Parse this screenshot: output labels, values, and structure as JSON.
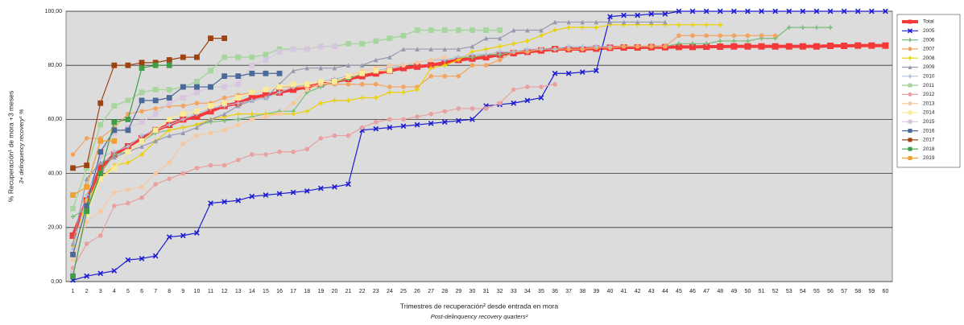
{
  "chart_data": {
    "type": "line",
    "y_title": "% Recuperación¹ de mora +3 meses",
    "y_subtitle": "3+ delinquency recovery¹ %",
    "x_title": "Trimestres de recuperación² desde entrada en mora",
    "x_subtitle": "Post-delinquency recovery quarters²",
    "categories": [
      "1",
      "2",
      "3",
      "4",
      "5",
      "6",
      "7",
      "8",
      "9",
      "10",
      "11",
      "12",
      "13",
      "14",
      "15",
      "16",
      "17",
      "18",
      "19",
      "20",
      "21",
      "22",
      "23",
      "24",
      "25",
      "26",
      "27",
      "28",
      "29",
      "30",
      "31",
      "32",
      "33",
      "34",
      "35",
      "36",
      "37",
      "38",
      "39",
      "40",
      "41",
      "42",
      "43",
      "44",
      "45",
      "46",
      "47",
      "48",
      "49",
      "50",
      "51",
      "52",
      "53",
      "54",
      "55",
      "56",
      "57",
      "58",
      "59",
      "60"
    ],
    "ylim": [
      0,
      100
    ],
    "yticks": [
      {
        "value": 0,
        "label": "0,00"
      },
      {
        "value": 20,
        "label": "20,00"
      },
      {
        "value": 40,
        "label": "40,00"
      },
      {
        "value": 60,
        "label": "60,00"
      },
      {
        "value": 80,
        "label": "80,00"
      },
      {
        "value": 100,
        "label": "100,00"
      }
    ],
    "grid": true,
    "legend": "right",
    "series": [
      {
        "name": "Total",
        "color": "#f23a3a",
        "marker": "square",
        "width": 4,
        "values": [
          17,
          30,
          42,
          47,
          50,
          53,
          56,
          58,
          60,
          61,
          63,
          65,
          66,
          68,
          69,
          70,
          71,
          72,
          73,
          74,
          75,
          76,
          77,
          78,
          79,
          79.5,
          80,
          81,
          82,
          82.5,
          83,
          84,
          84.5,
          85,
          85.5,
          86,
          86,
          86,
          86.2,
          86.5,
          86.6,
          86.6,
          86.7,
          86.7,
          86.8,
          86.8,
          86.9,
          86.9,
          87,
          87,
          87,
          87,
          87,
          87,
          87,
          87.2,
          87.2,
          87.3,
          87.3,
          87.3
        ]
      },
      {
        "name": "2005",
        "color": "#1c1cd0",
        "marker": "x",
        "width": 1.2,
        "values": [
          0.5,
          2,
          3,
          4,
          8,
          8.5,
          9.5,
          16.5,
          17,
          18,
          29,
          29.5,
          30,
          31.5,
          32,
          32.5,
          33,
          33.5,
          34.5,
          35,
          36,
          56,
          56.5,
          57,
          57.5,
          58,
          58.5,
          59,
          59.5,
          60,
          65,
          65.5,
          66,
          67,
          68,
          77,
          77,
          77.5,
          78,
          98,
          98.5,
          98.5,
          99,
          99,
          100,
          100,
          100,
          100,
          100,
          100,
          100,
          100,
          100,
          100,
          100,
          100,
          100,
          100,
          100,
          100
        ]
      },
      {
        "name": "2006",
        "color": "#7dbd7d",
        "marker": "plus",
        "width": 1.2,
        "values": [
          24,
          27,
          40,
          47,
          48,
          52,
          55,
          56,
          57,
          58,
          59,
          59.5,
          60,
          61,
          62,
          63,
          63,
          70,
          72,
          74,
          75,
          77,
          78,
          79,
          80,
          81,
          82,
          82,
          83,
          83,
          84,
          84,
          85,
          85,
          86,
          86,
          86,
          86,
          86.5,
          86.5,
          87,
          87,
          87,
          87,
          88,
          88,
          88,
          89,
          89,
          89,
          90,
          90,
          94,
          94,
          94,
          94,
          null,
          null,
          null,
          null
        ]
      },
      {
        "name": "2007",
        "color": "#f2a460",
        "marker": "circle",
        "width": 1.2,
        "values": [
          47,
          53,
          53,
          57,
          62,
          63,
          64,
          65,
          65,
          66,
          66,
          68,
          69,
          70,
          71,
          72,
          72,
          72,
          73,
          73,
          73,
          73,
          73,
          72,
          72,
          72,
          76,
          76,
          76,
          80,
          80,
          82,
          85,
          85,
          86,
          86,
          86,
          86,
          86.5,
          86.5,
          87,
          87,
          87,
          87,
          91,
          91,
          91,
          91,
          91,
          91,
          91,
          91,
          null,
          null,
          null,
          null,
          null,
          null,
          null,
          null
        ]
      },
      {
        "name": "2008",
        "color": "#ecd000",
        "marker": "plus",
        "width": 1.2,
        "values": [
          13,
          30,
          38,
          43,
          44,
          47,
          52,
          56,
          57,
          58,
          60,
          61,
          62,
          62,
          62,
          62,
          62,
          63,
          66,
          67,
          67,
          68,
          68,
          70,
          70,
          71,
          79,
          80,
          82,
          85,
          86,
          87,
          88,
          89,
          91,
          93,
          94,
          94,
          94,
          95,
          95,
          95,
          95,
          95,
          95,
          95,
          95,
          95,
          null,
          null,
          null,
          null,
          null,
          null,
          null,
          null,
          null,
          null,
          null,
          null
        ]
      },
      {
        "name": "2009",
        "color": "#9898ae",
        "marker": "triangle",
        "width": 1.2,
        "values": [
          14,
          38,
          44,
          46,
          48,
          50,
          52,
          54,
          55,
          57,
          60,
          62,
          65,
          67,
          68,
          73,
          78,
          79,
          79,
          79,
          80,
          80,
          82,
          83,
          86,
          86,
          86,
          86,
          86,
          87,
          90,
          90,
          93,
          93,
          93,
          96,
          96,
          96,
          96,
          96,
          96,
          96,
          96,
          96,
          null,
          null,
          null,
          null,
          null,
          null,
          null,
          null,
          null,
          null,
          null,
          null,
          null,
          null,
          null,
          null
        ]
      },
      {
        "name": "2010",
        "color": "#aac0dc",
        "marker": "plus",
        "width": 1,
        "values": [
          12,
          32,
          46,
          48,
          50,
          54,
          56,
          58,
          60,
          62,
          64,
          65,
          66,
          67,
          68,
          70,
          72,
          73,
          74,
          75,
          76,
          77,
          78,
          79,
          80,
          81,
          82,
          82,
          83,
          84,
          84,
          85,
          85,
          86,
          86,
          86,
          87,
          87,
          87,
          87,
          null,
          null,
          null,
          null,
          null,
          null,
          null,
          null,
          null,
          null,
          null,
          null,
          null,
          null,
          null,
          null,
          null,
          null,
          null,
          null
        ]
      },
      {
        "name": "2011",
        "color": "#a6d69e",
        "marker": "square",
        "width": 1.5,
        "values": [
          27,
          42,
          58,
          65,
          67,
          70,
          71,
          71,
          72,
          74,
          78,
          83,
          83,
          83,
          84,
          86,
          86,
          86,
          87,
          87,
          88,
          88,
          89,
          90,
          91,
          93,
          93,
          93,
          93,
          93,
          93,
          93,
          null,
          null,
          null,
          null,
          null,
          null,
          null,
          null,
          null,
          null,
          null,
          null,
          null,
          null,
          null,
          null,
          null,
          null,
          null,
          null,
          null,
          null,
          null,
          null,
          null,
          null,
          null,
          null
        ]
      },
      {
        "name": "2012",
        "color": "#e8a0a0",
        "marker": "circle",
        "width": 1.2,
        "values": [
          5,
          14,
          17,
          28,
          29,
          31,
          36,
          38,
          40,
          42,
          43,
          43,
          45,
          47,
          47,
          48,
          48,
          49,
          53,
          54,
          54,
          57,
          59,
          60,
          60,
          61,
          62,
          63,
          64,
          64,
          64,
          66,
          71,
          72,
          72,
          73,
          null,
          null,
          null,
          null,
          null,
          null,
          null,
          null,
          null,
          null,
          null,
          null,
          null,
          null,
          null,
          null,
          null,
          null,
          null,
          null,
          null,
          null,
          null,
          null
        ]
      },
      {
        "name": "2013",
        "color": "#f7c8a0",
        "marker": "circle",
        "width": 1.2,
        "values": [
          8,
          22,
          26,
          33,
          34,
          35,
          40,
          44,
          51,
          54,
          55,
          56,
          58,
          60,
          61,
          62,
          66,
          71,
          73,
          74,
          76,
          78,
          79,
          80,
          80,
          81,
          82,
          83,
          null,
          null,
          null,
          null,
          null,
          null,
          null,
          null,
          null,
          null,
          null,
          null,
          null,
          null,
          null,
          null,
          null,
          null,
          null,
          null,
          null,
          null,
          null,
          null,
          null,
          null,
          null,
          null,
          null,
          null,
          null,
          null
        ]
      },
      {
        "name": "2014",
        "color": "#fbeb98",
        "marker": "square",
        "width": 1.2,
        "values": [
          10,
          25,
          38,
          42,
          48,
          52,
          56,
          60,
          62,
          63,
          65,
          66,
          68,
          70,
          71,
          72,
          73,
          73,
          74,
          74,
          76,
          77,
          78,
          78,
          null,
          null,
          null,
          null,
          null,
          null,
          null,
          null,
          null,
          null,
          null,
          null,
          null,
          null,
          null,
          null,
          null,
          null,
          null,
          null,
          null,
          null,
          null,
          null,
          null,
          null,
          null,
          null,
          null,
          null,
          null,
          null,
          null,
          null,
          null,
          null
        ]
      },
      {
        "name": "2015",
        "color": "#d8c6e0",
        "marker": "square",
        "width": 1.2,
        "values": [
          3,
          28,
          47,
          55,
          57,
          59,
          62,
          66,
          68,
          70,
          72,
          72,
          73,
          80,
          82,
          85,
          86,
          86,
          87,
          87,
          null,
          null,
          null,
          null,
          null,
          null,
          null,
          null,
          null,
          null,
          null,
          null,
          null,
          null,
          null,
          null,
          null,
          null,
          null,
          null,
          null,
          null,
          null,
          null,
          null,
          null,
          null,
          null,
          null,
          null,
          null,
          null,
          null,
          null,
          null,
          null,
          null,
          null,
          null,
          null
        ]
      },
      {
        "name": "2016",
        "color": "#4a6898",
        "marker": "square",
        "width": 1.2,
        "values": [
          10,
          28,
          48,
          56,
          56,
          67,
          67,
          68,
          72,
          72,
          72,
          76,
          76,
          77,
          77,
          77,
          null,
          null,
          null,
          null,
          null,
          null,
          null,
          null,
          null,
          null,
          null,
          null,
          null,
          null,
          null,
          null,
          null,
          null,
          null,
          null,
          null,
          null,
          null,
          null,
          null,
          null,
          null,
          null,
          null,
          null,
          null,
          null,
          null,
          null,
          null,
          null,
          null,
          null,
          null,
          null,
          null,
          null,
          null,
          null
        ]
      },
      {
        "name": "2017",
        "color": "#9e4212",
        "marker": "square",
        "width": 1.2,
        "values": [
          42,
          43,
          66,
          80,
          80,
          81,
          81,
          82,
          83,
          83,
          90,
          90,
          null,
          null,
          null,
          null,
          null,
          null,
          null,
          null,
          null,
          null,
          null,
          null,
          null,
          null,
          null,
          null,
          null,
          null,
          null,
          null,
          null,
          null,
          null,
          null,
          null,
          null,
          null,
          null,
          null,
          null,
          null,
          null,
          null,
          null,
          null,
          null,
          null,
          null,
          null,
          null,
          null,
          null,
          null,
          null,
          null,
          null,
          null,
          null
        ]
      },
      {
        "name": "2018",
        "color": "#3f9e45",
        "marker": "square",
        "width": 1.2,
        "values": [
          2,
          26,
          40,
          59,
          60,
          79,
          80,
          80,
          null,
          null,
          null,
          null,
          null,
          null,
          null,
          null,
          null,
          null,
          null,
          null,
          null,
          null,
          null,
          null,
          null,
          null,
          null,
          null,
          null,
          null,
          null,
          null,
          null,
          null,
          null,
          null,
          null,
          null,
          null,
          null,
          null,
          null,
          null,
          null,
          null,
          null,
          null,
          null,
          null,
          null,
          null,
          null,
          null,
          null,
          null,
          null,
          null,
          null,
          null,
          null
        ]
      },
      {
        "name": "2019",
        "color": "#f0a030",
        "marker": "square",
        "width": 1.2,
        "values": [
          32,
          35,
          52,
          52,
          null,
          null,
          null,
          null,
          null,
          null,
          null,
          null,
          null,
          null,
          null,
          null,
          null,
          null,
          null,
          null,
          null,
          null,
          null,
          null,
          null,
          null,
          null,
          null,
          null,
          null,
          null,
          null,
          null,
          null,
          null,
          null,
          null,
          null,
          null,
          null,
          null,
          null,
          null,
          null,
          null,
          null,
          null,
          null,
          null,
          null,
          null,
          null,
          null,
          null,
          null,
          null,
          null,
          null,
          null,
          null
        ]
      }
    ]
  }
}
